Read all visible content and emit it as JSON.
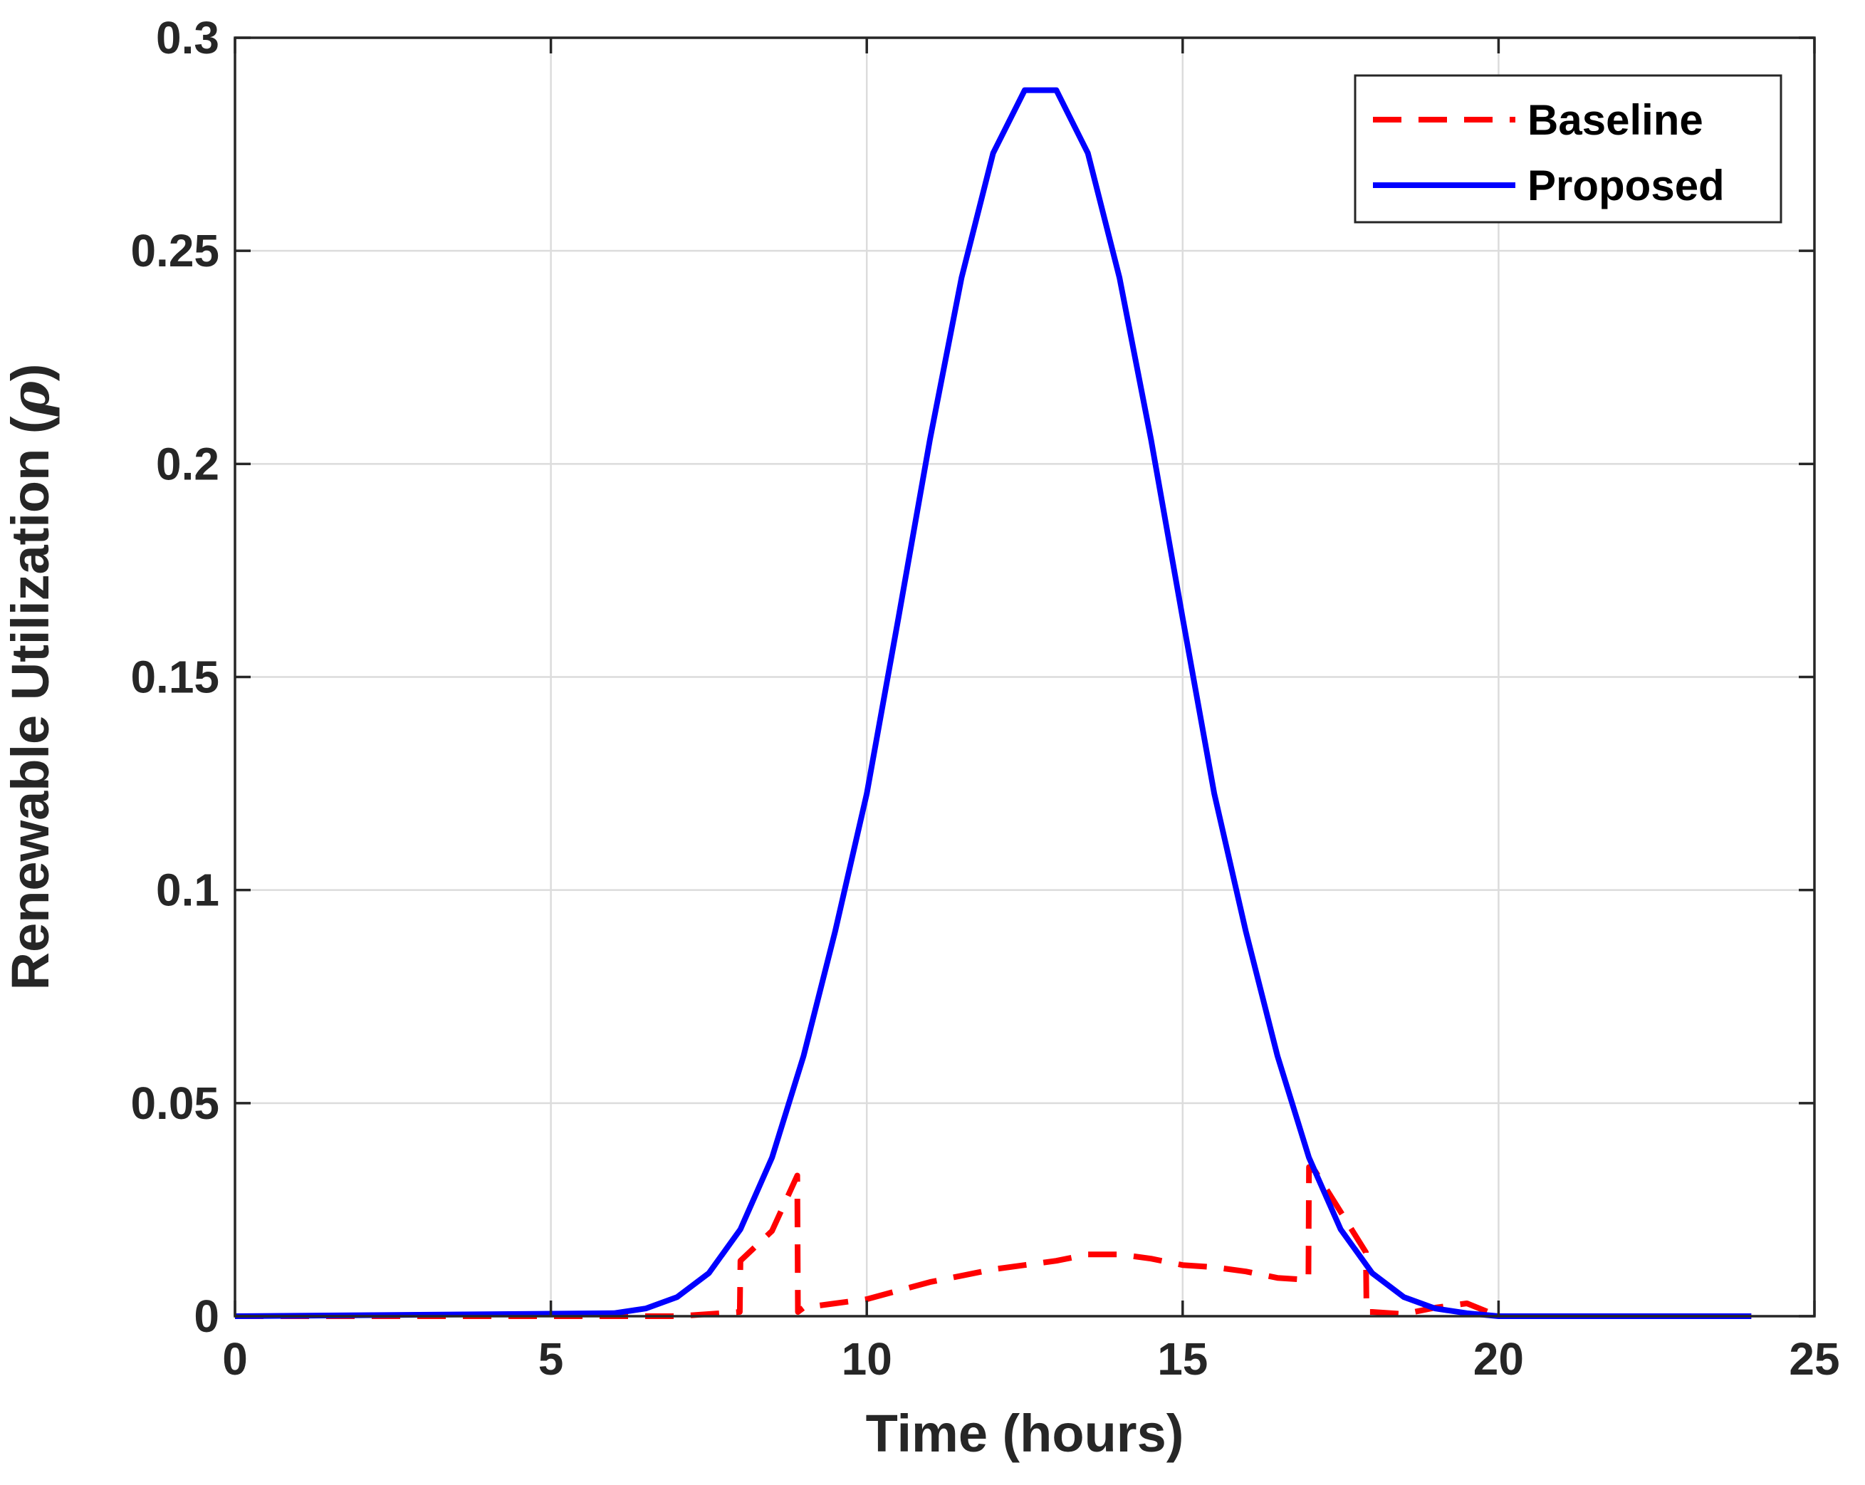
{
  "chart_data": {
    "type": "line",
    "title": "",
    "xlabel": "Time (hours)",
    "ylabel_text": "Renewable Utilization (",
    "ylabel_symbol": "ρ",
    "ylabel_close": ")",
    "xlim": [
      0,
      25
    ],
    "ylim": [
      0,
      0.3
    ],
    "grid": true,
    "legend_position": "top-right",
    "x_ticks": [
      0,
      5,
      10,
      15,
      20,
      25
    ],
    "x_tick_labels": [
      "0",
      "5",
      "10",
      "15",
      "20",
      "25"
    ],
    "y_ticks": [
      0,
      0.05,
      0.1,
      0.15,
      0.2,
      0.25,
      0.3
    ],
    "y_tick_labels": [
      "0",
      "0.05",
      "0.1",
      "0.15",
      "0.2",
      "0.25",
      "0.3"
    ],
    "series": [
      {
        "name": "Baseline",
        "color": "#ff0000",
        "style": "dashed",
        "x": [
          0,
          6,
          6.5,
          7,
          7.5,
          7.99,
          8.0,
          8.5,
          8.9,
          8.91,
          9.0,
          9.5,
          10,
          10.5,
          11,
          11.5,
          12,
          12.5,
          13,
          13.5,
          14,
          14.5,
          15,
          15.5,
          16,
          16.5,
          16.99,
          17.0,
          17.1,
          17.9,
          17.91,
          18.0,
          18.5,
          19,
          19.5,
          20,
          24
        ],
        "y": [
          0,
          0,
          0,
          0,
          0.0005,
          0.001,
          0.013,
          0.02,
          0.033,
          0.001,
          0.002,
          0.003,
          0.004,
          0.006,
          0.008,
          0.0095,
          0.011,
          0.012,
          0.013,
          0.0145,
          0.0145,
          0.0135,
          0.012,
          0.0115,
          0.0105,
          0.009,
          0.0085,
          0.035,
          0.034,
          0.015,
          0.001,
          0.001,
          0.0005,
          0.002,
          0.003,
          0,
          0
        ]
      },
      {
        "name": "Proposed",
        "color": "#0000ff",
        "style": "solid",
        "x": [
          0,
          6,
          6.5,
          7,
          7.5,
          8,
          8.5,
          9,
          9.5,
          10,
          10.5,
          11,
          11.5,
          12,
          12.5,
          13,
          13.5,
          14,
          14.5,
          15,
          15.5,
          16,
          16.5,
          17,
          17.5,
          18,
          18.5,
          19,
          19.5,
          20,
          24
        ],
        "y": [
          0,
          0.0007,
          0.0018,
          0.0045,
          0.0101,
          0.0204,
          0.0372,
          0.0611,
          0.0903,
          0.1226,
          0.1638,
          0.2057,
          0.2437,
          0.2729,
          0.2877,
          0.2877,
          0.2729,
          0.2437,
          0.2057,
          0.1638,
          0.1226,
          0.0903,
          0.0611,
          0.0372,
          0.0204,
          0.0101,
          0.0045,
          0.0018,
          0.0007,
          0,
          0
        ]
      }
    ]
  }
}
